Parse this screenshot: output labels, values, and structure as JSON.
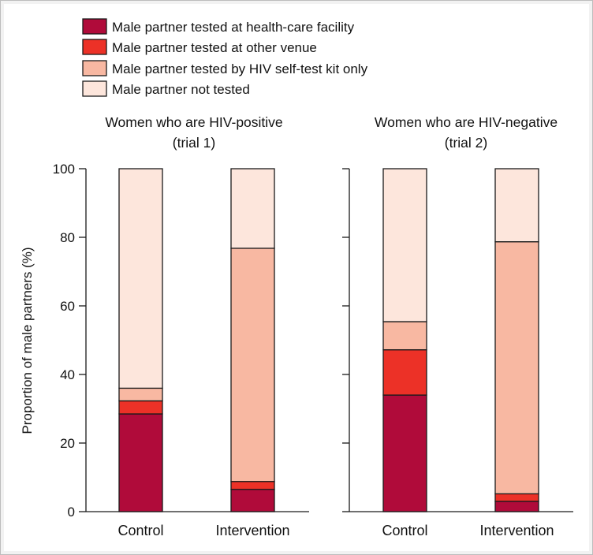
{
  "chart_data": {
    "type": "bar",
    "stacked": true,
    "ylabel": "Proportion of male partners  (%)",
    "ylim": [
      0,
      100
    ],
    "yticks": [
      0,
      20,
      40,
      60,
      80,
      100
    ],
    "legend_position": "top-left",
    "series": [
      {
        "name": "Male partner tested at health-care facility",
        "color": "#b00b3a"
      },
      {
        "name": "Male partner tested at other venue",
        "color": "#ec3127"
      },
      {
        "name": "Male partner tested by HIV self-test kit only",
        "color": "#f8b8a2"
      },
      {
        "name": "Male partner not tested",
        "color": "#fde6dc"
      }
    ],
    "panels": [
      {
        "title_line1": "Women who are HIV-positive",
        "title_line2": "(trial 1)",
        "categories": [
          "Control",
          "Intervention"
        ],
        "values": [
          [
            28.5,
            3.8,
            3.7,
            64.0
          ],
          [
            6.5,
            2.3,
            68.0,
            23.2
          ]
        ]
      },
      {
        "title_line1": "Women who are HIV-negative",
        "title_line2": "(trial 2)",
        "categories": [
          "Control",
          "Intervention"
        ],
        "values": [
          [
            34.0,
            13.2,
            8.2,
            44.6
          ],
          [
            3.0,
            2.2,
            73.5,
            21.3
          ]
        ]
      }
    ]
  }
}
